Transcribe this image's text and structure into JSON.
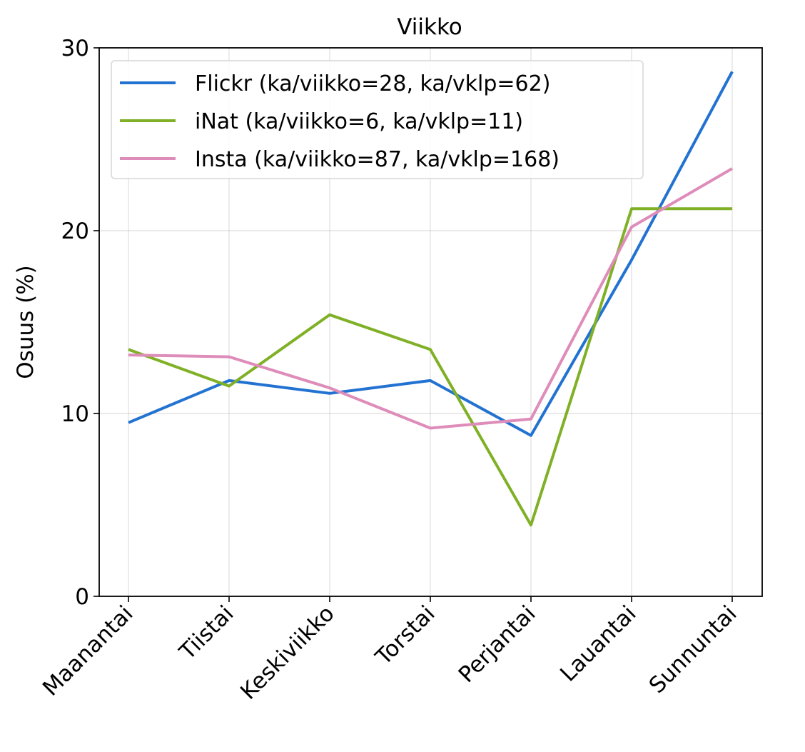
{
  "chart_data": {
    "type": "line",
    "title": "Viikko",
    "xlabel": "",
    "ylabel": "Osuus (%)",
    "categories": [
      "Maanantai",
      "Tiistai",
      "Keskiviikko",
      "Torstai",
      "Perjantai",
      "Lauantai",
      "Sunnuntai"
    ],
    "ylim": [
      0,
      30
    ],
    "yticks": [
      0,
      10,
      20,
      30
    ],
    "grid": true,
    "legend_position": "top-left",
    "series": [
      {
        "name": "Flickr (ka/viikko=28, ka/vklp=62)",
        "color": "#2272d2",
        "values": [
          9.5,
          11.8,
          11.1,
          11.8,
          8.8,
          18.4,
          28.7
        ]
      },
      {
        "name": "iNat (ka/viikko=6, ka/vklp=11)",
        "color": "#7fb026",
        "values": [
          13.5,
          11.5,
          15.4,
          13.5,
          3.9,
          21.2,
          21.2
        ]
      },
      {
        "name": "Insta (ka/viikko=87, ka/vklp=168)",
        "color": "#de8cb9",
        "values": [
          13.2,
          13.1,
          11.4,
          9.2,
          9.7,
          20.2,
          23.4
        ]
      }
    ]
  }
}
